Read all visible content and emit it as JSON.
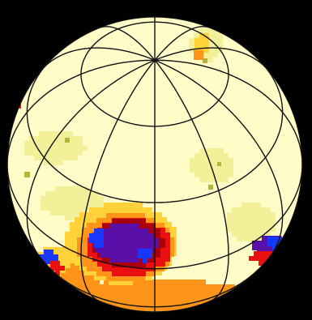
{
  "map": {
    "projection": "orthographic",
    "view_center_latitude": 45,
    "graticule": {
      "meridian_longitudes": [
        0,
        30,
        60,
        90,
        120,
        150,
        180,
        210,
        240,
        270,
        300,
        330
      ],
      "parallel_latitudes": [
        -60,
        -30,
        0,
        30,
        60
      ]
    },
    "colors": {
      "background": "#000000",
      "surface": "#fffcc8",
      "grid_lines": "#111111",
      "level_light_yellow": "#f3f09a",
      "level_olive": "#b8b23c",
      "level_yellow": "#ffd23a",
      "level_orange": "#ff9418",
      "level_red": "#e81010",
      "level_dark_red": "#a8000f",
      "level_purple": "#5a0fa8",
      "level_blue": "#1838ff"
    }
  }
}
